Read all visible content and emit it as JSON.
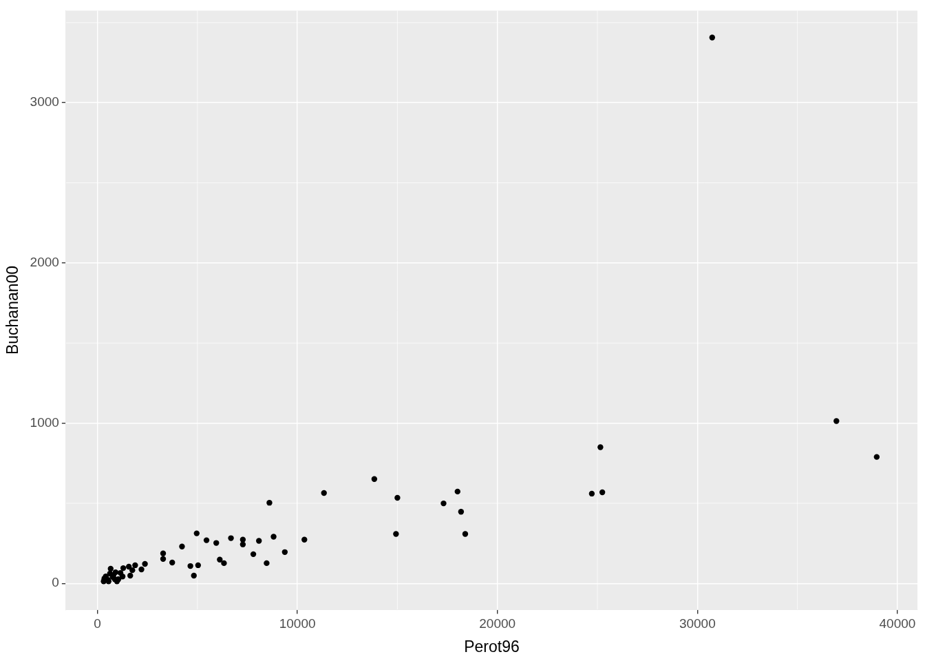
{
  "chart_data": {
    "type": "scatter",
    "x_label": "Perot96",
    "y_label": "Buchanan00",
    "color": "#000000",
    "marker": "circle",
    "grid": true,
    "legend": false,
    "x": [
      30739,
      36950,
      38964,
      25150,
      24720,
      25245,
      13846,
      11329,
      15000,
      14930,
      17308,
      18007,
      18182,
      18392,
      8601,
      10350,
      9371,
      8811,
      8462,
      8077,
      7797,
      7273,
      7273,
      6678,
      6329,
      6119,
      5944,
      5455,
      4965,
      5035,
      4825,
      4650,
      4231,
      3741,
      3287,
      3287,
      2378,
      2203,
      1888,
      1748,
      1643,
      1573,
      1294,
      1154,
      1049,
      909,
      769,
      664,
      524,
      420,
      315,
      560,
      874,
      629,
      1259,
      350,
      804,
      979
    ],
    "values": [
      3407,
      1013,
      789,
      850,
      560,
      568,
      651,
      564,
      534,
      308,
      499,
      573,
      447,
      308,
      503,
      273,
      195,
      291,
      126,
      265,
      182,
      273,
      243,
      282,
      126,
      148,
      252,
      269,
      312,
      113,
      48,
      108,
      230,
      130,
      187,
      152,
      121,
      87,
      113,
      82,
      48,
      104,
      95,
      65,
      26,
      69,
      39,
      91,
      22,
      43,
      13,
      13,
      26,
      61,
      43,
      30,
      52,
      13
    ],
    "xlim": [
      -1570,
      41000
    ],
    "ylim": [
      -165,
      3575
    ],
    "xticks": [
      0,
      10000,
      20000,
      30000,
      40000
    ],
    "yticks": [
      0,
      1000,
      2000,
      3000
    ]
  }
}
